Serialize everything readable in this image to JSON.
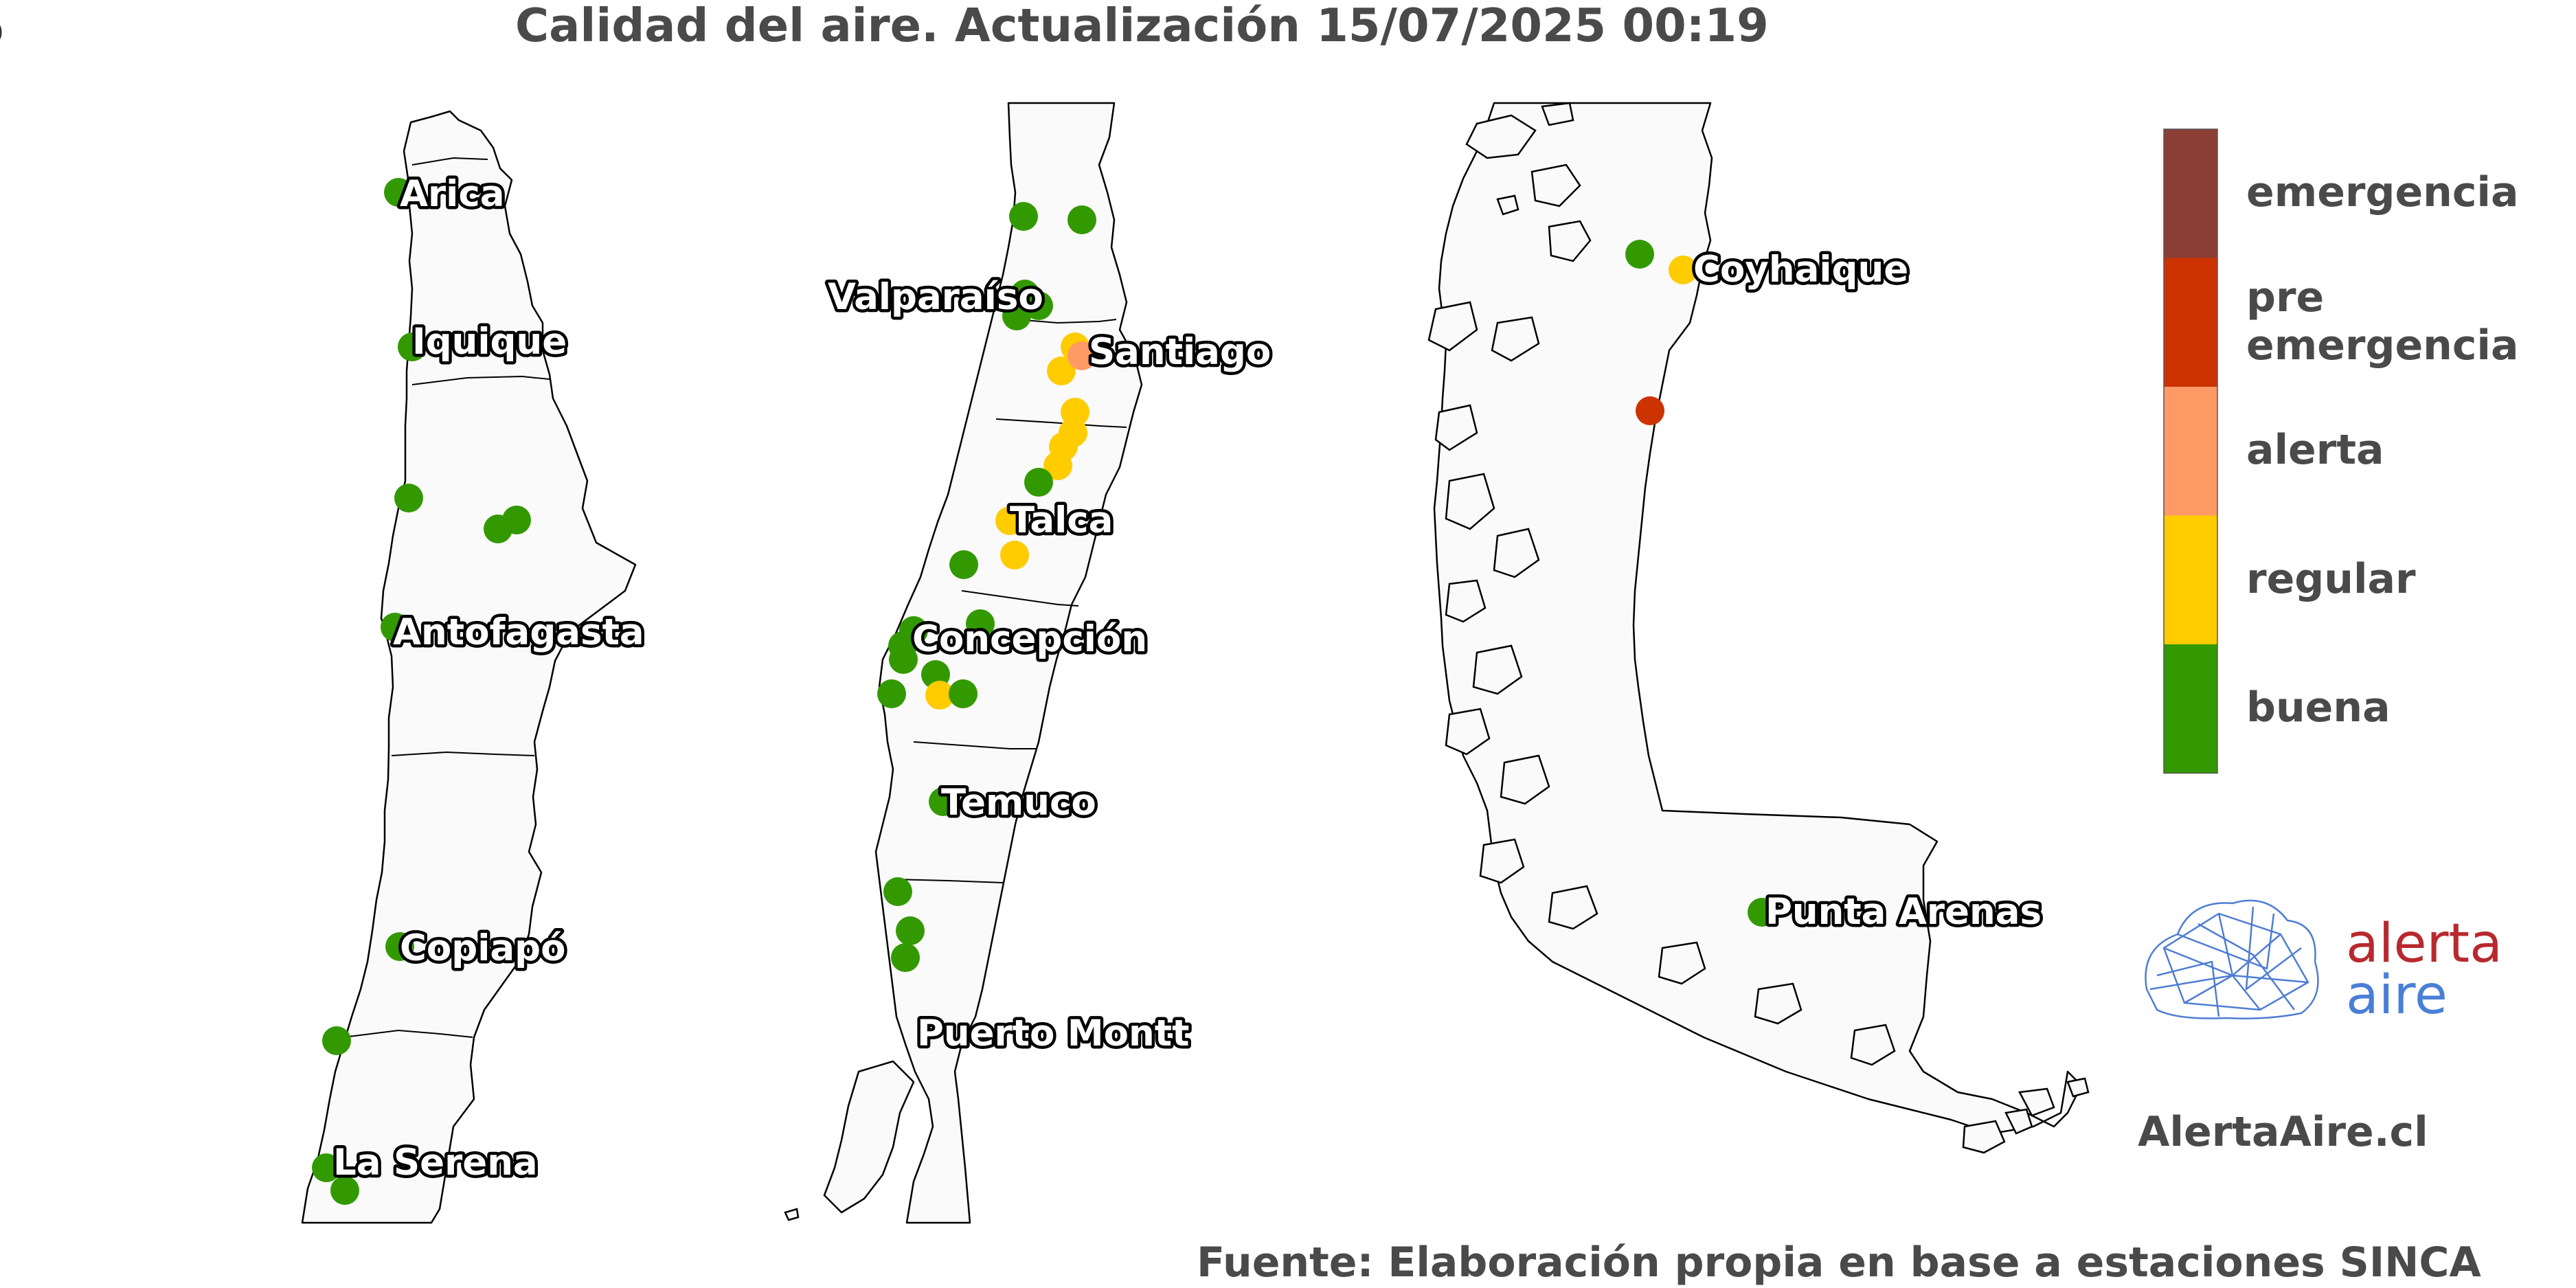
{
  "title": "Calidad del aire. Actualización 15/07/2025 00:19",
  "corner_tick": "0",
  "footer": "Fuente: Elaboración propia en base a estaciones SINCA",
  "site": "AlertaAire.cl",
  "logo": {
    "word1": "alerta",
    "word2": "aire",
    "color1": "#b8292f",
    "color2": "#4a7fd6",
    "icon": "geodesic-dome-cloud-icon"
  },
  "legend": [
    {
      "label": "emergencia",
      "color": "#8b3e35"
    },
    {
      "label": "pre emergencia",
      "lines": [
        "pre",
        "emergencia"
      ],
      "color": "#cc3300"
    },
    {
      "label": "alerta",
      "color": "#ff9966"
    },
    {
      "label": "regular",
      "color": "#ffcc00"
    },
    {
      "label": "buena",
      "color": "#339900"
    }
  ],
  "quality_colors": {
    "buena": "#339900",
    "regular": "#ffcc00",
    "alerta": "#ff9966",
    "preemergencia": "#cc3300",
    "emergencia": "#8b3e35"
  },
  "panels": [
    {
      "id": "norte",
      "cities": [
        "Arica",
        "Iquique",
        "Antofagasta",
        "Copiapó",
        "La Serena"
      ]
    },
    {
      "id": "centro-sur",
      "cities": [
        "Valparaíso",
        "Santiago",
        "Talca",
        "Concepción",
        "Temuco",
        "Puerto Montt"
      ]
    },
    {
      "id": "austral",
      "cities": [
        "Coyhaique",
        "Punta Arenas"
      ]
    }
  ],
  "stations": {
    "norte": [
      "buena",
      "buena",
      "buena",
      "buena",
      "buena",
      "buena",
      "buena",
      "buena",
      "buena",
      "buena"
    ],
    "centro-sur": [
      "buena",
      "buena",
      "buena",
      "buena",
      "buena",
      "regular",
      "regular",
      "regular",
      "alerta",
      "regular",
      "regular",
      "regular",
      "buena",
      "regular",
      "regular",
      "buena",
      "buena",
      "buena",
      "buena",
      "buena",
      "buena",
      "buena",
      "regular",
      "buena",
      "buena",
      "buena",
      "buena",
      "buena"
    ],
    "austral": [
      "buena",
      "regular",
      "preemergencia",
      "buena"
    ]
  }
}
